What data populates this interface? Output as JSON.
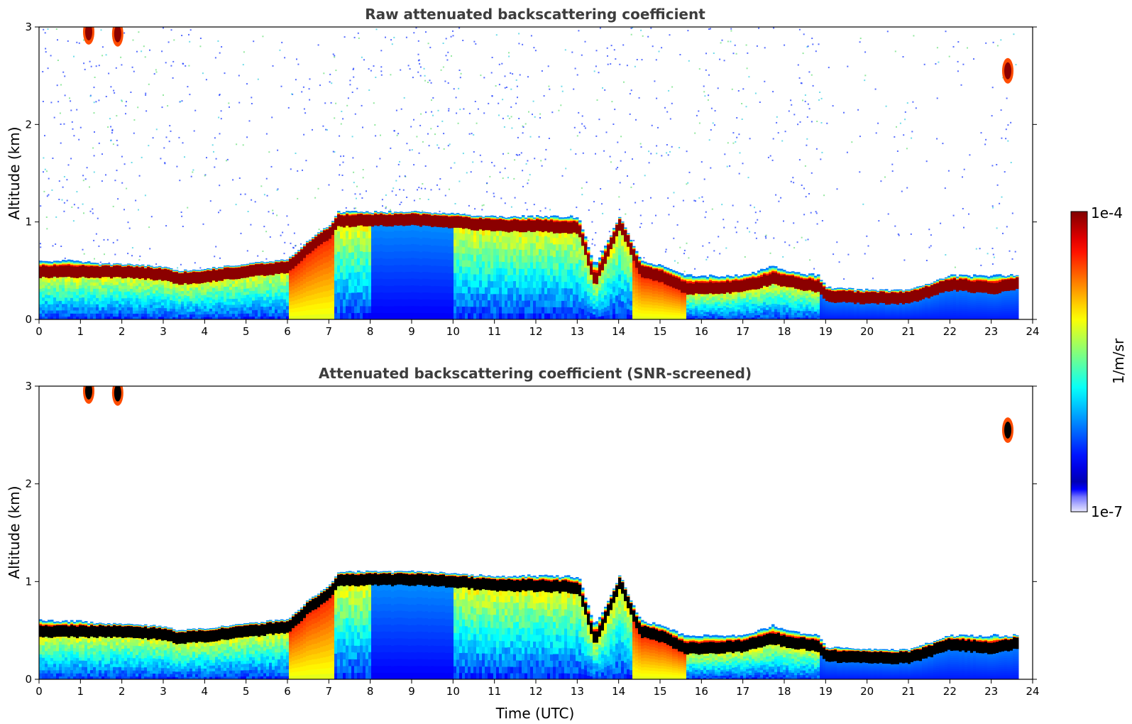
{
  "chart_data": [
    {
      "type": "heatmap",
      "title": "Raw attenuated backscattering coefficient",
      "xlabel": "",
      "ylabel": "Altitude (km)",
      "xlim": [
        0,
        24
      ],
      "ylim": [
        0,
        3
      ],
      "x_ticks": [
        "0",
        "1",
        "2",
        "3",
        "4",
        "5",
        "6",
        "7",
        "8",
        "9",
        "10",
        "11",
        "12",
        "13",
        "14",
        "15",
        "16",
        "17",
        "18",
        "19",
        "20",
        "21",
        "22",
        "23",
        "24"
      ],
      "y_ticks": [
        "0",
        "1",
        "2",
        "3"
      ],
      "screened": false,
      "layer_top_km": [
        [
          0,
          0.6
        ],
        [
          1,
          0.6
        ],
        [
          1.6,
          0.55
        ],
        [
          2,
          0.52
        ],
        [
          3,
          0.5
        ],
        [
          3.3,
          0.45
        ],
        [
          4,
          0.47
        ],
        [
          5,
          0.52
        ],
        [
          6,
          0.55
        ],
        [
          6.5,
          0.75
        ],
        [
          7,
          0.95
        ],
        [
          7.2,
          1.1
        ],
        [
          8,
          1.1
        ],
        [
          9,
          1.1
        ],
        [
          10,
          1.08
        ],
        [
          11,
          1.05
        ],
        [
          12,
          1.06
        ],
        [
          13,
          1.05
        ],
        [
          13.4,
          0.55
        ],
        [
          14,
          1.05
        ],
        [
          14.5,
          0.6
        ],
        [
          15,
          0.55
        ],
        [
          15.6,
          0.45
        ],
        [
          16,
          0.45
        ],
        [
          17,
          0.45
        ],
        [
          17.7,
          0.55
        ],
        [
          18,
          0.5
        ],
        [
          18.8,
          0.45
        ],
        [
          19,
          0.33
        ],
        [
          20,
          0.3
        ],
        [
          21,
          0.3
        ],
        [
          22,
          0.45
        ],
        [
          23,
          0.45
        ],
        [
          23.6,
          0.45
        ]
      ],
      "layer_core_km": [
        [
          0,
          0.45
        ],
        [
          1,
          0.45
        ],
        [
          1.6,
          0.45
        ],
        [
          2,
          0.45
        ],
        [
          3,
          0.42
        ],
        [
          3.3,
          0.38
        ],
        [
          4,
          0.4
        ],
        [
          5,
          0.45
        ],
        [
          6,
          0.5
        ],
        [
          6.5,
          0.7
        ],
        [
          7,
          0.85
        ],
        [
          7.2,
          0.97
        ],
        [
          8,
          0.98
        ],
        [
          9,
          0.98
        ],
        [
          10,
          0.96
        ],
        [
          11,
          0.92
        ],
        [
          12,
          0.92
        ],
        [
          13,
          0.9
        ],
        [
          13.4,
          0.35
        ],
        [
          14,
          0.95
        ],
        [
          14.5,
          0.45
        ],
        [
          15,
          0.4
        ],
        [
          15.6,
          0.28
        ],
        [
          16,
          0.28
        ],
        [
          17,
          0.3
        ],
        [
          17.7,
          0.38
        ],
        [
          18,
          0.35
        ],
        [
          18.8,
          0.3
        ],
        [
          19,
          0.2
        ],
        [
          20,
          0.18
        ],
        [
          21,
          0.18
        ],
        [
          22,
          0.32
        ],
        [
          23,
          0.28
        ],
        [
          23.6,
          0.33
        ]
      ],
      "elevated_cloud_patches": [
        {
          "time_h": 1.2,
          "altitude_km": 2.95
        },
        {
          "time_h": 1.9,
          "altitude_km": 2.93
        },
        {
          "time_h": 23.4,
          "altitude_km": 2.55
        }
      ],
      "data_end_time_h": 23.6
    },
    {
      "type": "heatmap",
      "title": "Attenuated backscattering coefficient (SNR-screened)",
      "xlabel": "Time (UTC)",
      "ylabel": "Altitude (km)",
      "xlim": [
        0,
        24
      ],
      "ylim": [
        0,
        3
      ],
      "x_ticks": [
        "0",
        "1",
        "2",
        "3",
        "4",
        "5",
        "6",
        "7",
        "8",
        "9",
        "10",
        "11",
        "12",
        "13",
        "14",
        "15",
        "16",
        "17",
        "18",
        "19",
        "20",
        "21",
        "22",
        "23",
        "24"
      ],
      "y_ticks": [
        "0",
        "1",
        "2",
        "3"
      ],
      "screened": true,
      "saturated_color": "#000000"
    }
  ],
  "colorbar": {
    "label": "1/m/sr",
    "max_label": "1e-4",
    "min_label": "1e-7",
    "scale": "log",
    "range": [
      1e-07,
      0.0001
    ],
    "colormap": "jet",
    "low_end_colors": [
      "#e8e8ff",
      "#b0b0ff",
      "#7070ff",
      "#0000ff"
    ]
  }
}
